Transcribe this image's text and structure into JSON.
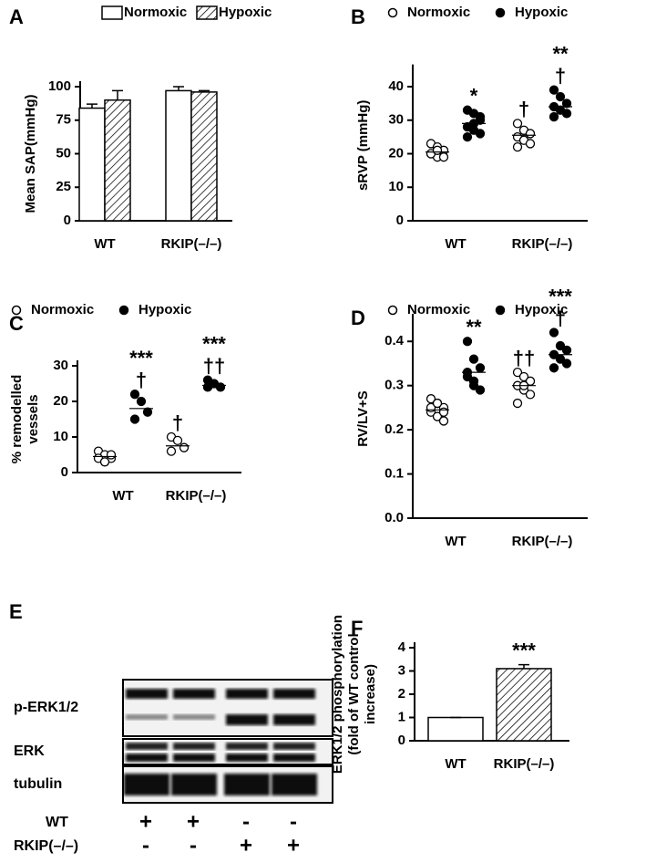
{
  "chart_data": [
    {
      "type": "bar",
      "panel": "A",
      "ylabel": [
        "Mean SAP(mmHg)"
      ],
      "categories": [
        "WT",
        "RKIP(–/–)"
      ],
      "series": [
        {
          "name": "Normoxic",
          "color": "#ffffff",
          "pattern": "solid",
          "values": [
            84,
            97
          ],
          "errors": [
            3,
            3
          ]
        },
        {
          "name": "Hypoxic",
          "color": "#ffffff",
          "pattern": "hatch",
          "values": [
            90,
            96
          ],
          "errors": [
            7,
            1
          ]
        }
      ],
      "ylim": [
        0,
        100
      ],
      "yticks": [
        0,
        25,
        50,
        75,
        100
      ],
      "legend": true
    },
    {
      "type": "dot",
      "panel": "B",
      "ylabel": [
        "sRVP (mmHg)"
      ],
      "categories": [
        "WT",
        "RKIP(–/–)"
      ],
      "series": [
        {
          "name": "Normoxic",
          "marker": "open",
          "values": [
            [
              23,
              22,
              21,
              20,
              19,
              19,
              20,
              21
            ],
            [
              29,
              27,
              26,
              25,
              24,
              23,
              22
            ]
          ],
          "means": [
            20.5,
            25.5
          ],
          "annotations": [
            [],
            [
              "†"
            ]
          ]
        },
        {
          "name": "Hypoxic",
          "marker": "filled",
          "values": [
            [
              33,
              32,
              30,
              28,
              27,
              26,
              25,
              29,
              31
            ],
            [
              39,
              37,
              35,
              34,
              33,
              32,
              31
            ]
          ],
          "means": [
            29,
            34
          ],
          "annotations": [
            [
              "*"
            ],
            [
              "**",
              "†"
            ]
          ]
        }
      ],
      "ylim": [
        0,
        45
      ],
      "yticks": [
        0,
        10,
        20,
        30,
        40
      ],
      "legend": true
    },
    {
      "type": "dot",
      "panel": "C",
      "ylabel": [
        "% remodelled",
        "vessels"
      ],
      "categories": [
        "WT",
        "RKIP(–/–)"
      ],
      "series": [
        {
          "name": "Normoxic",
          "marker": "open",
          "values": [
            [
              6,
              5,
              4,
              4,
              3,
              5
            ],
            [
              10,
              9,
              7,
              6
            ]
          ],
          "means": [
            4.5,
            7.5
          ],
          "annotations": [
            [],
            [
              "†"
            ]
          ]
        },
        {
          "name": "Hypoxic",
          "marker": "filled",
          "values": [
            [
              22,
              20,
              17,
              15
            ],
            [
              26,
              25,
              24,
              24
            ]
          ],
          "means": [
            18,
            24.5
          ],
          "annotations": [
            [
              "***",
              "†"
            ],
            [
              "***",
              "††"
            ]
          ]
        }
      ],
      "ylim": [
        0,
        30
      ],
      "yticks": [
        0,
        10,
        20,
        30
      ],
      "legend": true
    },
    {
      "type": "dot",
      "panel": "D",
      "ylabel": [
        "RV/LV+S"
      ],
      "categories": [
        "WT",
        "RKIP(–/–)"
      ],
      "series": [
        {
          "name": "Normoxic",
          "marker": "open",
          "values": [
            [
              0.27,
              0.26,
              0.25,
              0.24,
              0.23,
              0.22,
              0.25,
              0.26,
              0.24
            ],
            [
              0.33,
              0.32,
              0.31,
              0.3,
              0.29,
              0.28,
              0.26,
              0.3
            ]
          ],
          "means": [
            0.245,
            0.3
          ],
          "annotations": [
            [],
            [
              "††"
            ]
          ]
        },
        {
          "name": "Hypoxic",
          "marker": "filled",
          "values": [
            [
              0.4,
              0.36,
              0.34,
              0.32,
              0.3,
              0.29,
              0.33,
              0.31
            ],
            [
              0.42,
              0.39,
              0.38,
              0.37,
              0.36,
              0.35,
              0.34
            ]
          ],
          "means": [
            0.33,
            0.37
          ],
          "annotations": [
            [
              "**"
            ],
            [
              "***",
              "†"
            ]
          ]
        }
      ],
      "ylim": [
        0,
        0.45
      ],
      "yticks": [
        {
          "value": 0,
          "label": "0.0"
        },
        0.1,
        0.2,
        0.3,
        0.4
      ],
      "legend": true
    },
    {
      "type": "bar",
      "panel": "F",
      "ylabel": [
        "ERK1/2 phosphorylation",
        "(fold of WT control",
        "increase)"
      ],
      "categories": [
        "WT",
        "RKIP(–/–)"
      ],
      "series": [
        {
          "color": "#ffffff",
          "patterns": [
            "solid",
            "hatch"
          ],
          "values": [
            1,
            3.1
          ],
          "errors": [
            0,
            0.17
          ],
          "annotations": [
            [],
            [
              "***"
            ]
          ]
        }
      ],
      "ylim": [
        0,
        4
      ],
      "yticks": [
        0,
        1,
        2,
        3,
        4
      ],
      "legend": false
    }
  ],
  "blot": {
    "panel": "E",
    "rows": [
      "p-ERK1/2",
      "ERK",
      "tubulin"
    ],
    "groups": [
      {
        "name": "WT",
        "signs": [
          "+",
          "+",
          "-",
          "-"
        ]
      },
      {
        "name": "RKIP(–/–)",
        "signs": [
          "-",
          "-",
          "+",
          "+"
        ]
      }
    ]
  }
}
